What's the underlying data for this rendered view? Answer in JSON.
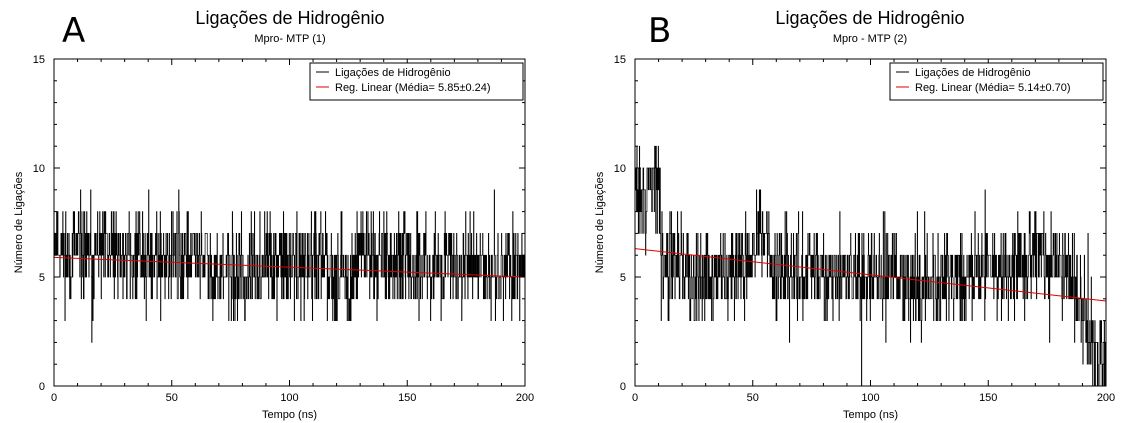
{
  "chart_data": [
    {
      "panel_label": "A",
      "type": "line",
      "title": "Ligações de Hidrogênio",
      "subtitle": "Mpro- MTP (1)",
      "xlabel": "Tempo (ns)",
      "ylabel": "Número de Ligações",
      "xlim": [
        0,
        200
      ],
      "ylim": [
        0,
        15
      ],
      "xticks": [
        0,
        50,
        100,
        150,
        200
      ],
      "yticks": [
        0,
        5,
        10,
        15
      ],
      "grid": false,
      "legend_position": "top-right",
      "series": [
        {
          "name": "Ligações de Hidrogênio",
          "color": "#000000",
          "kind": "noisy-step",
          "control_x": [
            0,
            5,
            10,
            20,
            30,
            40,
            50,
            60,
            65,
            70,
            75,
            80,
            90,
            100,
            110,
            120,
            125,
            130,
            140,
            150,
            160,
            170,
            180,
            190,
            200
          ],
          "control_y": [
            7,
            6,
            6,
            6,
            6,
            6,
            6,
            6,
            5.5,
            5,
            5,
            5,
            5.5,
            5.5,
            5.5,
            5.5,
            4.5,
            6.5,
            6,
            5.5,
            5.5,
            5.5,
            5.5,
            5.5,
            5.5
          ],
          "range_min": 1,
          "range_max": 11
        },
        {
          "name": "Reg. Linear (Média= 5.85±0.24)",
          "color": "#e00000",
          "kind": "line",
          "x": [
            0,
            200
          ],
          "y": [
            5.9,
            5.0
          ]
        }
      ]
    },
    {
      "panel_label": "B",
      "type": "line",
      "title": "Ligações de Hidrogênio",
      "subtitle": "Mpro - MTP (2)",
      "xlabel": "Tempo (ns)",
      "ylabel": "Número de Ligações",
      "xlim": [
        0,
        200
      ],
      "ylim": [
        0,
        15
      ],
      "xticks": [
        0,
        50,
        100,
        150,
        200
      ],
      "yticks": [
        0,
        5,
        10,
        15
      ],
      "grid": false,
      "legend_position": "top-right",
      "series": [
        {
          "name": "Ligações de Hidrogênio",
          "color": "#000000",
          "kind": "noisy-step",
          "control_x": [
            0,
            5,
            8,
            10,
            12,
            15,
            20,
            30,
            40,
            50,
            53,
            55,
            58,
            65,
            80,
            100,
            120,
            140,
            160,
            170,
            180,
            187,
            190,
            193,
            196,
            200
          ],
          "control_y": [
            9,
            8.5,
            10,
            8.5,
            6,
            6,
            5.5,
            5,
            5.5,
            5.5,
            8,
            6.5,
            5.5,
            5.5,
            5,
            5,
            5,
            5,
            5.5,
            6,
            5.5,
            4.5,
            3.5,
            2,
            1,
            1
          ],
          "range_min": 0,
          "range_max": 14
        },
        {
          "name": "Reg. Linear (Média= 5.14±0.70)",
          "color": "#e00000",
          "kind": "line",
          "x": [
            0,
            200
          ],
          "y": [
            6.3,
            3.9
          ]
        }
      ]
    }
  ]
}
